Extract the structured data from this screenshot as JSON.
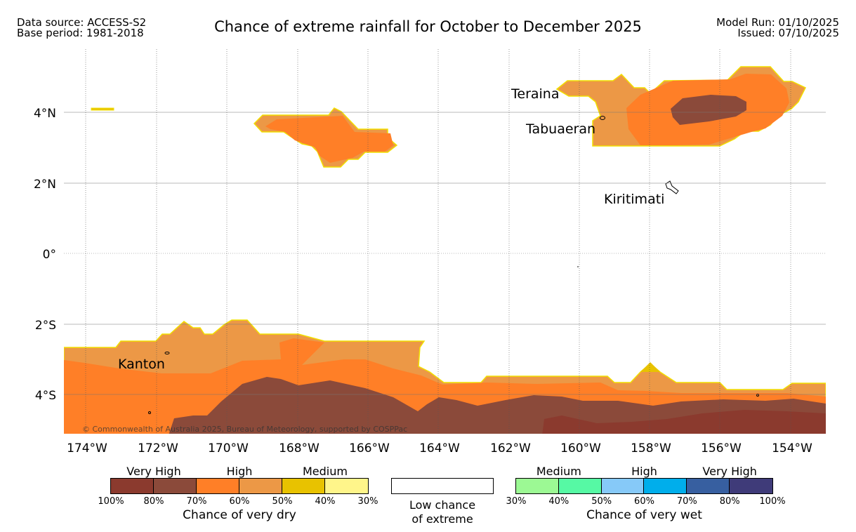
{
  "header": {
    "source": "Data source: ACCESS-S2",
    "base_period": "Base period: 1981-2018",
    "title": "Chance of extreme rainfall for October to December 2025",
    "model_run": "Model Run: 01/10/2025",
    "issued": "Issued: 07/10/2025"
  },
  "map": {
    "lat_labels": [
      "4°N",
      "2°N",
      "0°",
      "2°S",
      "4°S"
    ],
    "lon_labels": [
      "174°W",
      "172°W",
      "170°W",
      "168°W",
      "166°W",
      "164°W",
      "162°W",
      "160°W",
      "158°W",
      "156°W",
      "154°W"
    ],
    "places": [
      "Teraina",
      "Tabuaeran",
      "Kiritimati",
      "Kanton"
    ],
    "copyright": "© Commonwealth of Australia 2025, Bureau of Meteorology, supported by COSPPac"
  },
  "legend": {
    "dry": {
      "groups": [
        "Very High",
        "High",
        "Medium"
      ],
      "colors": [
        "#8b3a2e",
        "#8b4a3a",
        "#ff7f27",
        "#ec9846",
        "#e8c200",
        "#fff58a"
      ],
      "ticks": [
        "100%",
        "80%",
        "70%",
        "60%",
        "50%",
        "40%",
        "30%"
      ],
      "title": "Chance of very dry"
    },
    "low": {
      "line1": "Low chance",
      "line2": "of extreme"
    },
    "wet": {
      "groups": [
        "Medium",
        "High",
        "Very High"
      ],
      "colors": [
        "#9cf994",
        "#56f9a4",
        "#86c9f8",
        "#00aeeb",
        "#375fa0",
        "#3f3b79"
      ],
      "ticks": [
        "30%",
        "40%",
        "50%",
        "60%",
        "70%",
        "80%",
        "100%"
      ],
      "title": "Chance of very wet"
    }
  }
}
